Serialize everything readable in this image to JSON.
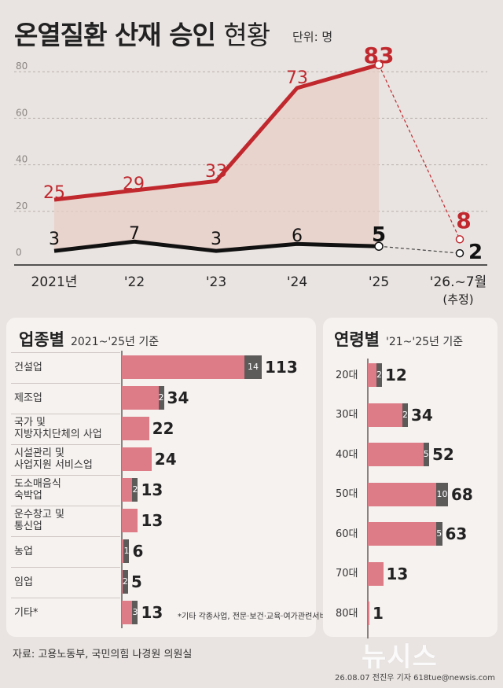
{
  "title": {
    "main": "온열질환 산재 승인",
    "sub": "현황",
    "unit": "단위: 명"
  },
  "chart_data": [
    {
      "type": "line",
      "x": [
        "2021년",
        "'22",
        "'23",
        "'24",
        "'25",
        "'26.~7월"
      ],
      "x_note": "(추정)",
      "ylim": [
        0,
        90
      ],
      "yticks": [
        0,
        20,
        40,
        60,
        80
      ],
      "series": [
        {
          "values": [
            25,
            29,
            33,
            73,
            83,
            8
          ],
          "labels": [
            "25",
            "29",
            "33",
            "73",
            "83",
            "8"
          ],
          "color": "#c0282e"
        },
        {
          "values": [
            3,
            7,
            3,
            6,
            5,
            2
          ],
          "labels": [
            "3",
            "7",
            "3",
            "6",
            "5",
            "2"
          ],
          "color": "#111111"
        }
      ]
    },
    {
      "type": "bar",
      "title": "업종별",
      "subtitle": "2021~'25년 기준",
      "categories": [
        "건설업",
        "제조업",
        "국가 및\n지방자치단체의 사업",
        "시설관리 및\n사업지원 서비스업",
        "도소매음식\n숙박업",
        "운수창고 및\n통신업",
        "농업",
        "임업",
        "기타*"
      ],
      "totals": [
        113,
        34,
        22,
        24,
        13,
        13,
        6,
        5,
        13
      ],
      "dark_values": [
        14,
        2,
        null,
        null,
        2,
        null,
        1,
        2,
        3
      ],
      "dark_labels": [
        "14",
        "2",
        "",
        "",
        "2",
        "",
        "1",
        "2",
        "3"
      ],
      "total_labels": [
        "113",
        "34",
        "22",
        "24",
        "13",
        "13",
        "6",
        "5",
        "13"
      ],
      "xlim": [
        0,
        113
      ],
      "footnote": "*기타 각종사업,\n전문·보건·교육·여가관련서비스업"
    },
    {
      "type": "bar",
      "title": "연령별",
      "subtitle": "'21~'25년 기준",
      "categories": [
        "20대",
        "30대",
        "40대",
        "50대",
        "60대",
        "70대",
        "80대"
      ],
      "totals": [
        12,
        34,
        52,
        68,
        63,
        13,
        1
      ],
      "dark_values": [
        2,
        2,
        5,
        10,
        5,
        null,
        null
      ],
      "dark_labels": [
        "2",
        "2",
        "5",
        "10",
        "5",
        "",
        ""
      ],
      "total_labels": [
        "12",
        "34",
        "52",
        "68",
        "63",
        "13",
        "1"
      ],
      "xlim": [
        0,
        68
      ]
    }
  ],
  "source": "자료: 고용노동부, 국민의힘 나경원 의원실",
  "credit": "26.08.07 전진우 기자 618tue@newsis.com",
  "logo": "뉴시스",
  "colors": {
    "red": "#c0282e",
    "bar": "#dd7b86",
    "dark": "#5d5a5a",
    "fill": "#e8cfc6",
    "bg": "#e9e4e1"
  }
}
